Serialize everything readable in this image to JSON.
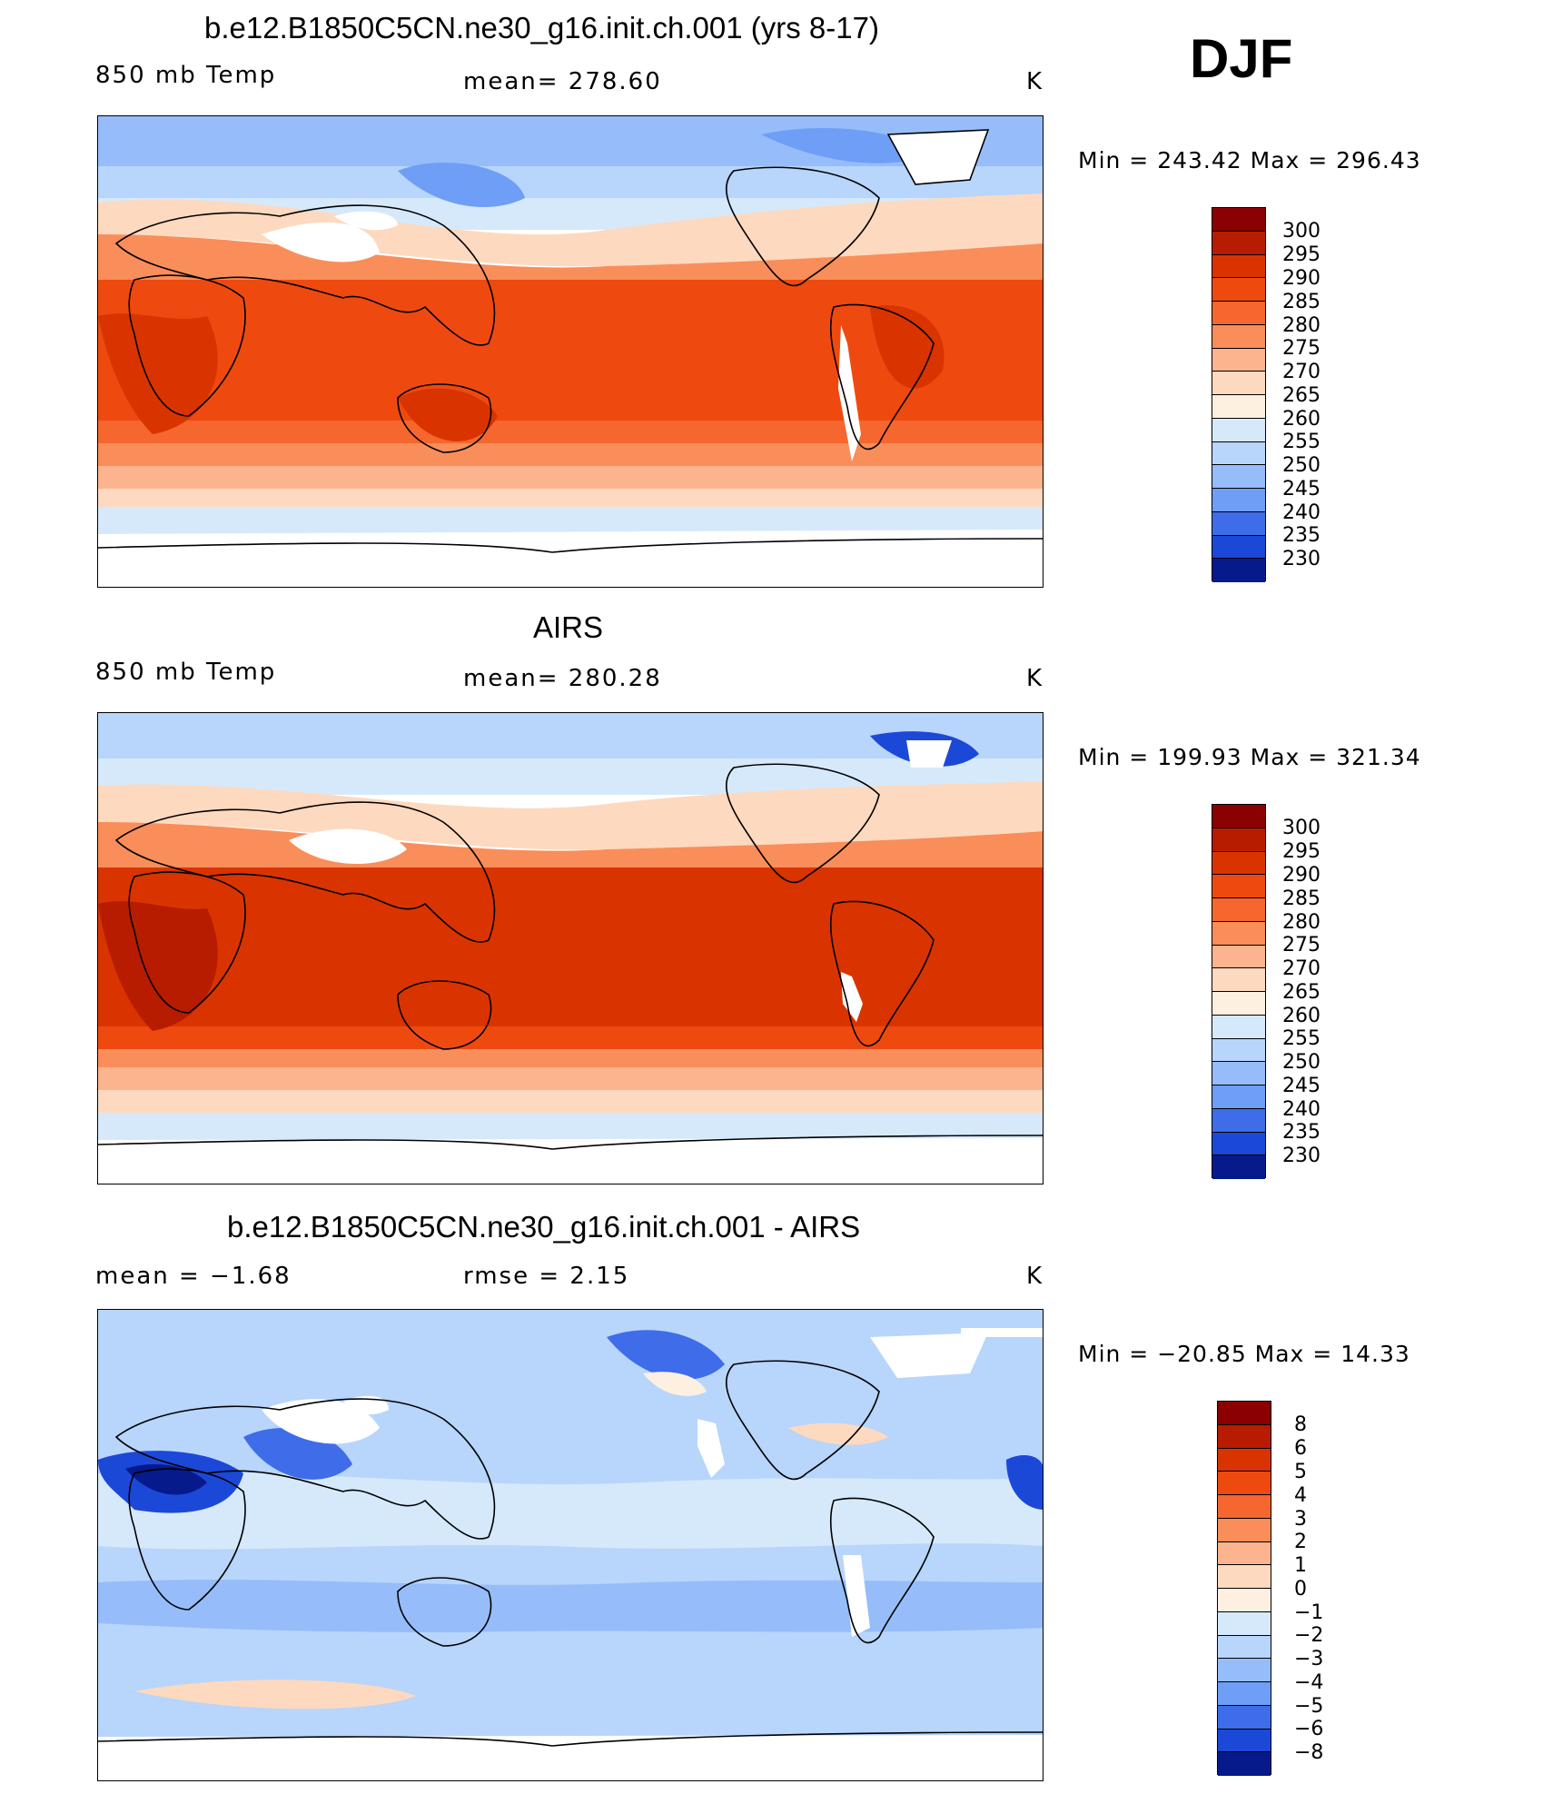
{
  "season": "DJF",
  "panels": [
    {
      "title": "b.e12.B1850C5CN.ne30_g16.init.ch.001 (yrs 8-17)",
      "left_label": "850 mb Temp",
      "center_label": "mean= 278.60",
      "right_label": "K",
      "minmax": "Min = 243.42 Max = 296.43",
      "colorbar_labels": [
        "300",
        "295",
        "290",
        "285",
        "280",
        "275",
        "270",
        "265",
        "260",
        "255",
        "250",
        "245",
        "240",
        "235",
        "230"
      ],
      "colors": [
        "#8b0000",
        "#b71c00",
        "#d93400",
        "#ee4a10",
        "#f5672e",
        "#f98e5a",
        "#fbb48e",
        "#fdd9bf",
        "#fdf0e0",
        "#d6e9fb",
        "#b8d5fb",
        "#96bdfa",
        "#6f9ef6",
        "#3f6de9",
        "#1c48d8",
        "#0a2fb8",
        "#061a8c"
      ]
    },
    {
      "title": "AIRS",
      "left_label": "850 mb Temp",
      "center_label": "mean= 280.28",
      "right_label": "K",
      "minmax": "Min = 199.93 Max = 321.34",
      "colorbar_labels": [
        "300",
        "295",
        "290",
        "285",
        "280",
        "275",
        "270",
        "265",
        "260",
        "255",
        "250",
        "245",
        "240",
        "235",
        "230"
      ],
      "colors": [
        "#8b0000",
        "#b71c00",
        "#d93400",
        "#ee4a10",
        "#f5672e",
        "#f98e5a",
        "#fbb48e",
        "#fdd9bf",
        "#fdf0e0",
        "#d6e9fb",
        "#b8d5fb",
        "#96bdfa",
        "#6f9ef6",
        "#3f6de9",
        "#1c48d8",
        "#0a2fb8",
        "#061a8c"
      ]
    },
    {
      "title": "b.e12.B1850C5CN.ne30_g16.init.ch.001 - AIRS",
      "left_label": "mean = −1.68",
      "center_label": "rmse = 2.15",
      "right_label": "K",
      "minmax": "Min = −20.85 Max = 14.33",
      "colorbar_labels": [
        "8",
        "6",
        "5",
        "4",
        "3",
        "2",
        "1",
        "0",
        "−1",
        "−2",
        "−3",
        "−4",
        "−5",
        "−6",
        "−8"
      ],
      "colors": [
        "#8b0000",
        "#b71c00",
        "#d93400",
        "#ee4a10",
        "#f5672e",
        "#f98e5a",
        "#fbb48e",
        "#fdd9bf",
        "#fdf0e0",
        "#d6e9fb",
        "#b8d5fb",
        "#96bdfa",
        "#6f9ef6",
        "#3f6de9",
        "#1c48d8",
        "#0a2fb8",
        "#061a8c"
      ]
    }
  ]
}
